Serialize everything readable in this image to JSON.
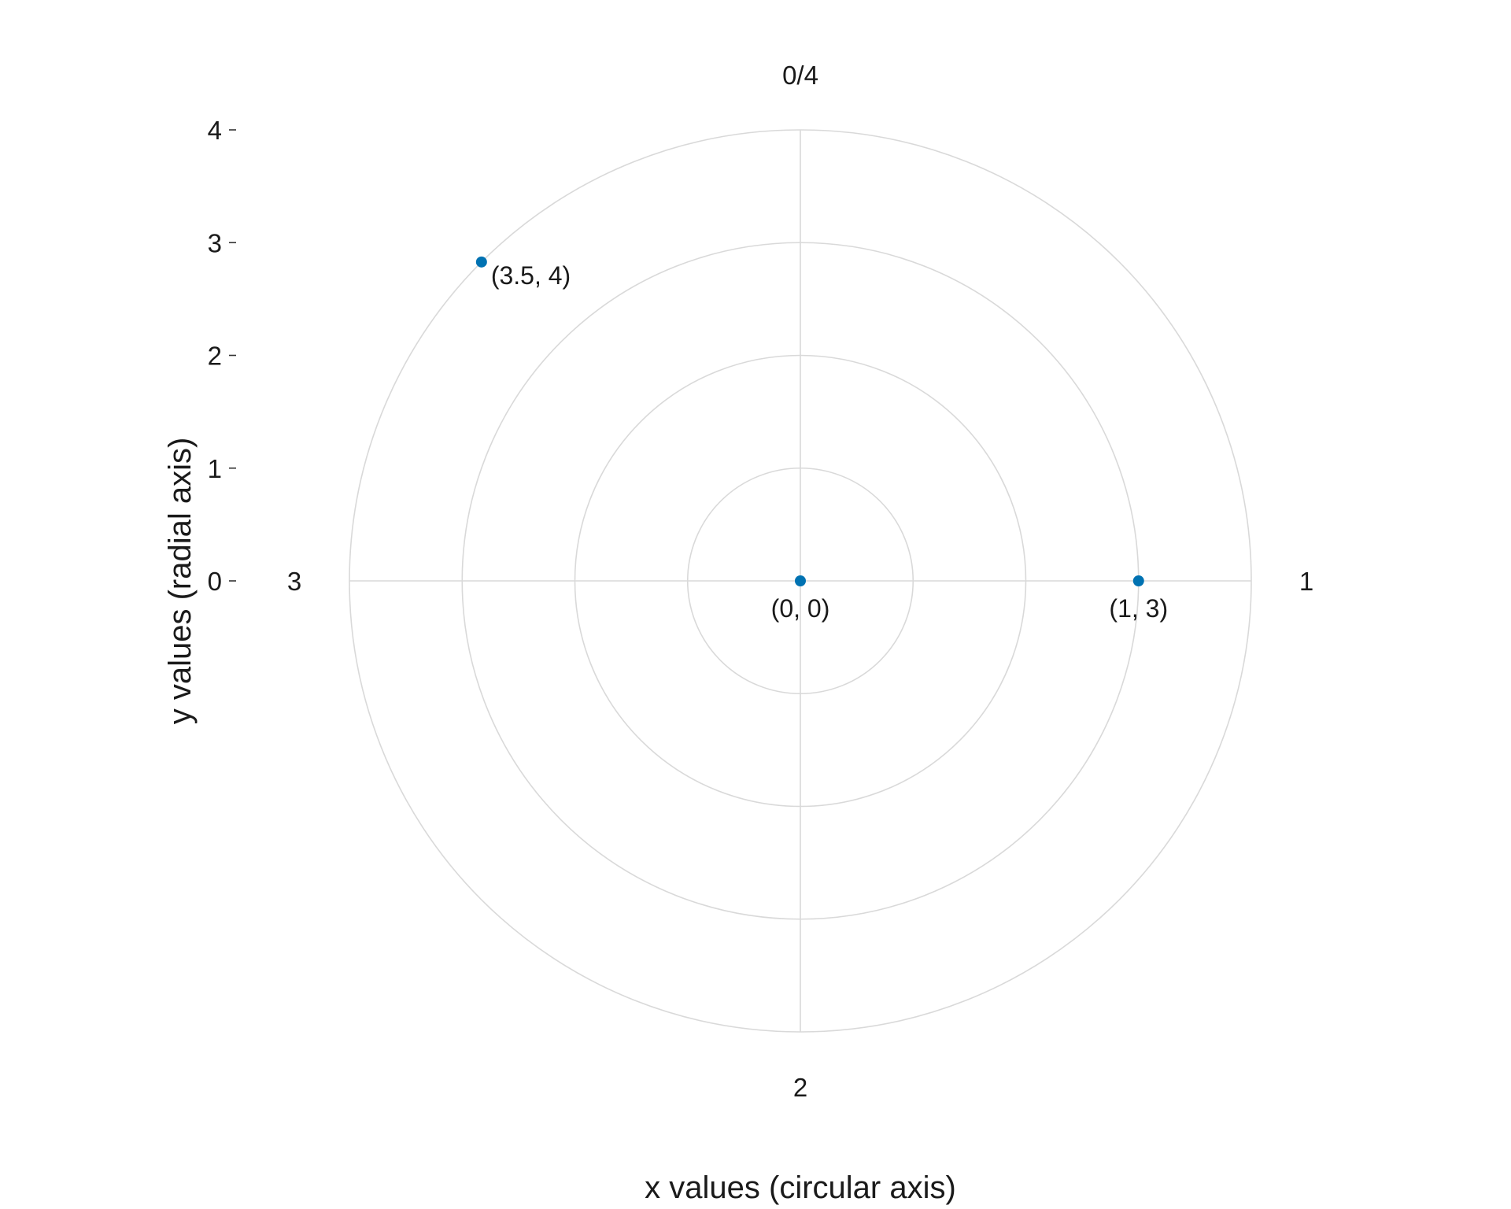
{
  "chart_data": {
    "type": "scatter",
    "coordinate_system": "polar",
    "xlabel": "x values (circular axis)",
    "ylabel": "y values (radial axis)",
    "theta_range": [
      0,
      4
    ],
    "theta_direction": "clockwise",
    "theta_zero_position": "top",
    "r_range": [
      0,
      4
    ],
    "theta_tick_labels": [
      {
        "value": 0,
        "label": "0/4"
      },
      {
        "value": 1,
        "label": "1"
      },
      {
        "value": 2,
        "label": "2"
      },
      {
        "value": 3,
        "label": "3"
      }
    ],
    "r_ticks": [
      0,
      1,
      2,
      3,
      4
    ],
    "grid": true,
    "points": [
      {
        "x": 0,
        "y": 0,
        "label": "(0, 0)"
      },
      {
        "x": 1,
        "y": 3,
        "label": "(1, 3)"
      },
      {
        "x": 3.5,
        "y": 4,
        "label": "(3.5, 4)"
      }
    ],
    "point_color": "#0072B2",
    "grid_color": "#d9d9d9"
  }
}
